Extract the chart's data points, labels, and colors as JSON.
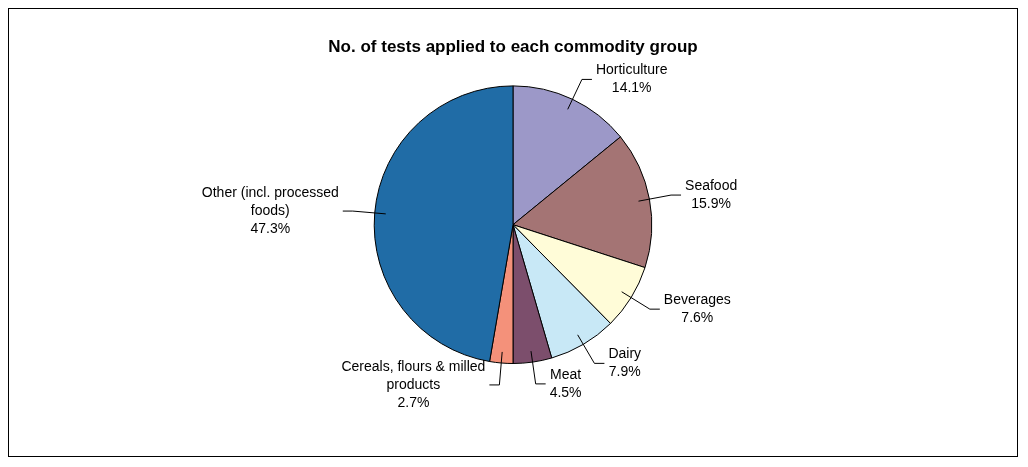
{
  "chart_data": {
    "type": "pie",
    "title": "No. of tests applied to each commodity group",
    "categories": [
      "Horticulture",
      "Seafood",
      "Beverages",
      "Dairy",
      "Meat",
      "Cereals, flours & milled products",
      "Other (incl. processed foods)"
    ],
    "values": [
      14.1,
      15.9,
      7.6,
      7.9,
      4.5,
      2.7,
      47.3
    ],
    "value_labels": [
      "14.1%",
      "15.9%",
      "7.6%",
      "7.9%",
      "4.5%",
      "2.7%",
      "47.3%"
    ],
    "colors": [
      "#9c98c8",
      "#a47474",
      "#fffcd8",
      "#c8e8f6",
      "#7c4e6c",
      "#f4917a",
      "#206ca6"
    ],
    "legend": false
  }
}
